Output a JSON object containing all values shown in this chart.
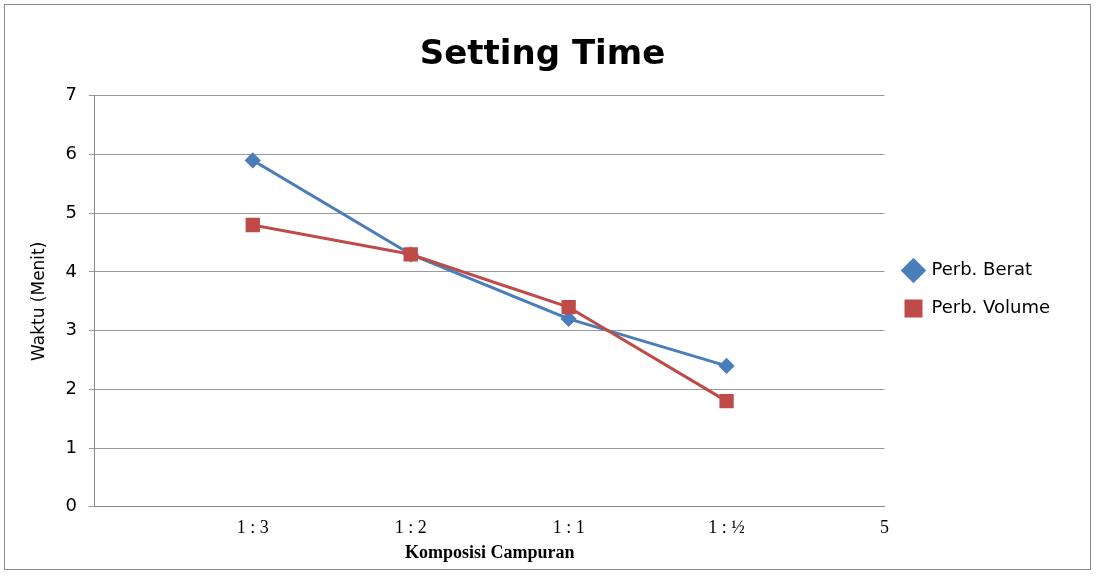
{
  "chart_data": {
    "type": "line",
    "title": "Setting Time",
    "xlabel": "Komposisi Campuran",
    "ylabel": "Waktu (Menit)",
    "categories": [
      null,
      "1 : 3",
      "1 : 2",
      "1 : 1",
      "1 : ½",
      "5"
    ],
    "series": [
      {
        "name": "Perb. Berat",
        "color": "#4a7ebb",
        "values": [
          null,
          5.9,
          4.3,
          3.2,
          2.4,
          null
        ],
        "marker": "diamond"
      },
      {
        "name": "Perb. Volume",
        "color": "#be4b48",
        "values": [
          null,
          4.8,
          4.3,
          3.4,
          1.8,
          null
        ],
        "marker": "square"
      }
    ],
    "ylim": [
      0,
      7
    ],
    "yticks": [
      0,
      1,
      2,
      3,
      4,
      5,
      6,
      7
    ],
    "grid": "y",
    "legend": "right"
  }
}
